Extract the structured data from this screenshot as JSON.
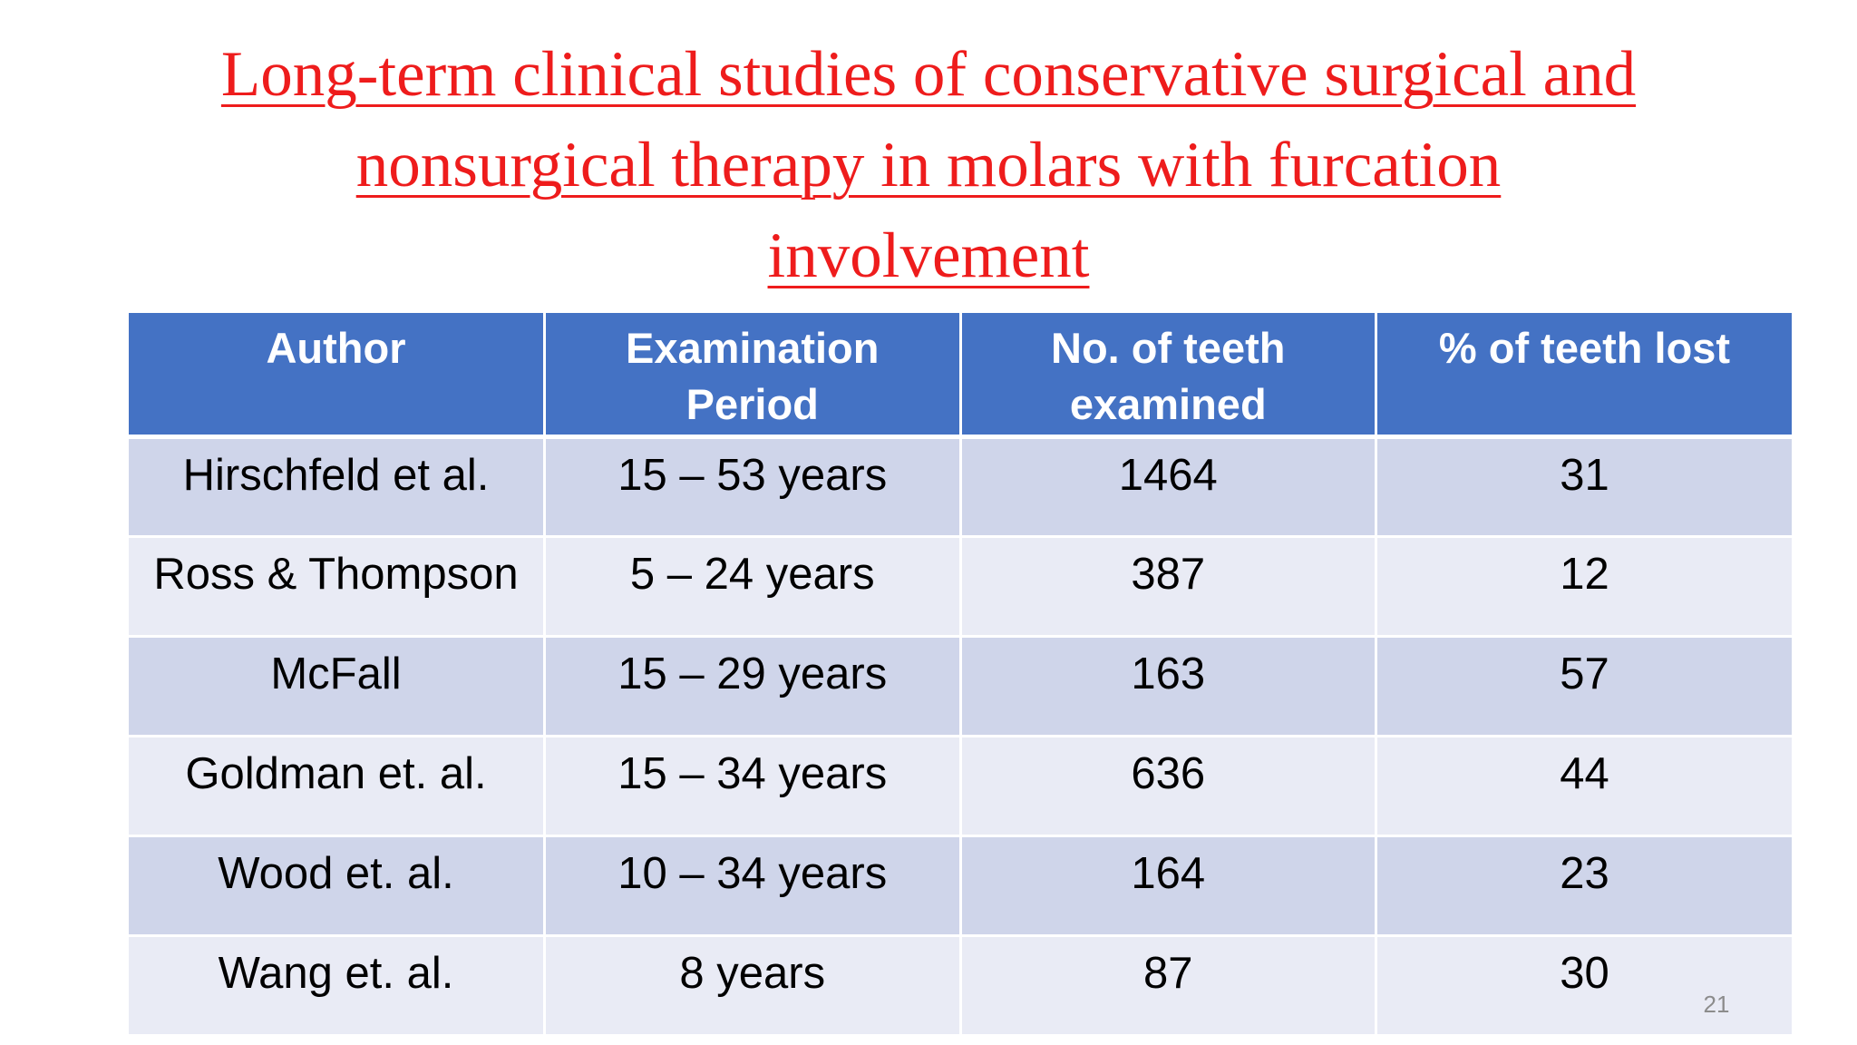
{
  "title": {
    "line1": "Long-term clinical studies of conservative surgical and",
    "line2": "nonsurgical therapy in molars with furcation",
    "line3": "involvement"
  },
  "table": {
    "headers": {
      "author": "Author",
      "period_line1": "Examination",
      "period_line2": "Period",
      "teeth_line1": "No. of teeth",
      "teeth_line2": "examined",
      "lost": "% of teeth lost"
    },
    "rows": [
      {
        "author": "Hirschfeld et al.",
        "period": "15 – 53 years",
        "teeth": "1464",
        "lost": "31"
      },
      {
        "author": "Ross & Thompson",
        "period": "5 – 24 years",
        "teeth": "387",
        "lost": "12"
      },
      {
        "author": "McFall",
        "period": "15 – 29 years",
        "teeth": "163",
        "lost": "57"
      },
      {
        "author": "Goldman et. al.",
        "period": "15 – 34 years",
        "teeth": "636",
        "lost": "44"
      },
      {
        "author": "Wood et. al.",
        "period": "10 – 34 years",
        "teeth": "164",
        "lost": "23"
      },
      {
        "author": "Wang et. al.",
        "period": "8 years",
        "teeth": "87",
        "lost": "30"
      }
    ]
  },
  "slide_number": "21",
  "colors": {
    "title": "#ee1c1c",
    "header_bg": "#4472c4",
    "row_odd_bg": "#cfd5ea",
    "row_even_bg": "#e9ebf5"
  }
}
